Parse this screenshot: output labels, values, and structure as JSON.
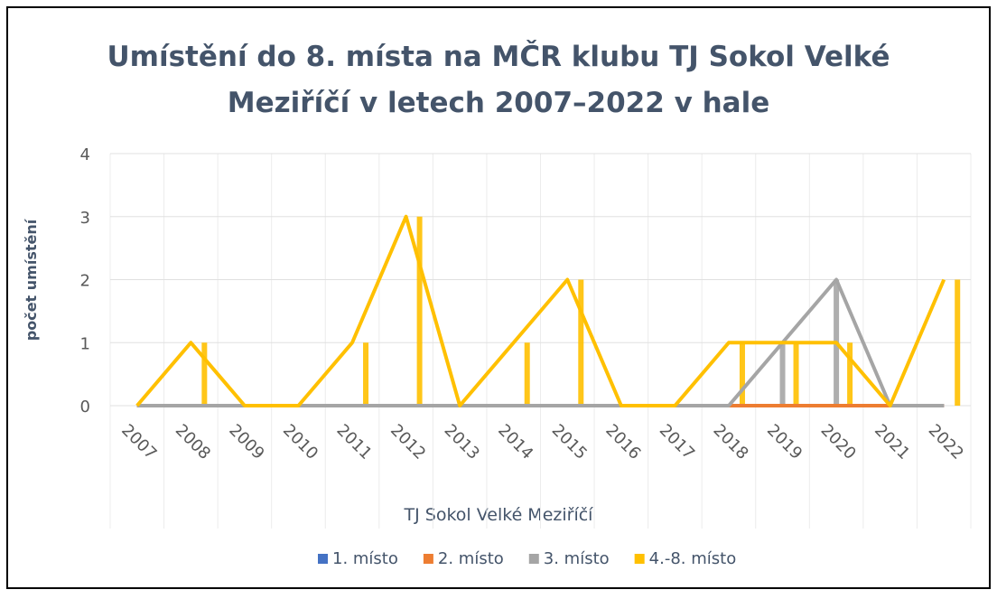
{
  "chart_data": {
    "type": "line",
    "title": "Umístění do 8. místa na MČR klubu TJ Sokol Velké Meziříčí v letech 2007–2022 v hale",
    "title_lines": [
      "Umístění do 8. místa na MČR klubu TJ Sokol Velké",
      "Meziříčí v letech 2007–2022 v hale"
    ],
    "x_label": "TJ Sokol Velké Meziříčí",
    "y_label": "počet umístění",
    "categories": [
      "2007",
      "2008",
      "2009",
      "2010",
      "2011",
      "2012",
      "2013",
      "2014",
      "2015",
      "2016",
      "2017",
      "2018",
      "2019",
      "2020",
      "2021",
      "2022"
    ],
    "series": [
      {
        "name": "1. místo",
        "color": "#4472c4",
        "values": [
          0,
          0,
          0,
          0,
          0,
          0,
          0,
          0,
          0,
          0,
          0,
          0,
          0,
          0,
          0,
          0
        ]
      },
      {
        "name": "2. místo",
        "color": "#ed7d31",
        "values": [
          0,
          0,
          0,
          0,
          0,
          0,
          0,
          0,
          0,
          0,
          0,
          0,
          0,
          0,
          0,
          0
        ]
      },
      {
        "name": "3. místo",
        "color": "#a5a5a5",
        "values": [
          0,
          0,
          0,
          0,
          0,
          0,
          0,
          0,
          0,
          0,
          0,
          0,
          1,
          2,
          0,
          0
        ]
      },
      {
        "name": "4.-8. místo",
        "color": "#ffc000",
        "values": [
          0,
          1,
          0,
          0,
          1,
          3,
          0,
          1,
          2,
          0,
          0,
          1,
          1,
          1,
          0,
          2
        ]
      }
    ],
    "ylim": [
      0,
      4
    ],
    "yticks": [
      0,
      1,
      2,
      3,
      4
    ],
    "grid": true,
    "legend": "bottom"
  }
}
